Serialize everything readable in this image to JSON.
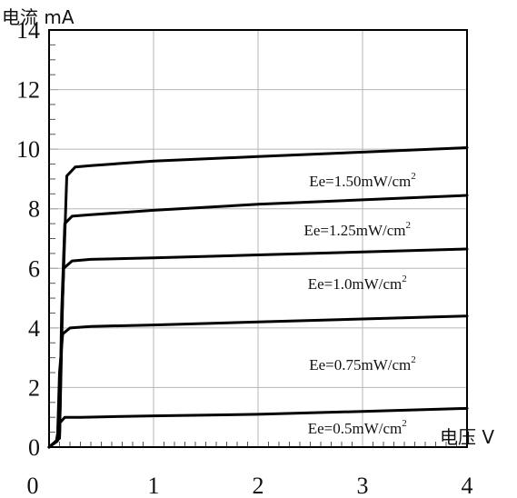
{
  "chart_data": {
    "type": "line",
    "ylabel": "电流 mA",
    "xlabel": "电压 V",
    "xlim": [
      0,
      4
    ],
    "ylim": [
      0,
      14
    ],
    "x_ticks": [
      "0",
      "1",
      "2",
      "3",
      "4"
    ],
    "y_ticks": [
      "0",
      "2",
      "4",
      "6",
      "8",
      "10",
      "12",
      "14"
    ],
    "grid": true,
    "series": [
      {
        "name": "Ee=1.50mW/cm2",
        "label_parts": [
          "Ee=1.50mW/cm",
          "2"
        ],
        "x": [
          0,
          0.1,
          0.13,
          0.17,
          0.25,
          0.4,
          1,
          2,
          3,
          4
        ],
        "y": [
          0,
          0.3,
          5.0,
          9.1,
          9.4,
          9.45,
          9.6,
          9.75,
          9.9,
          10.05
        ]
      },
      {
        "name": "Ee=1.25mW/cm2",
        "label_parts": [
          "Ee=1.25mW/cm",
          "2"
        ],
        "x": [
          0,
          0.1,
          0.12,
          0.15,
          0.22,
          0.4,
          1,
          2,
          3,
          4
        ],
        "y": [
          0,
          0.3,
          4.5,
          7.5,
          7.75,
          7.8,
          7.95,
          8.15,
          8.3,
          8.45
        ]
      },
      {
        "name": "Ee=1.0mW/cm2",
        "label_parts": [
          "Ee=1.0mW/cm",
          "2"
        ],
        "x": [
          0,
          0.1,
          0.12,
          0.14,
          0.22,
          0.4,
          1,
          2,
          3,
          4
        ],
        "y": [
          0,
          0.3,
          4.0,
          6.0,
          6.25,
          6.3,
          6.35,
          6.45,
          6.55,
          6.65
        ]
      },
      {
        "name": "Ee=0.75mW/cm2",
        "label_parts": [
          "Ee=0.75mW/cm",
          "2"
        ],
        "x": [
          0,
          0.08,
          0.1,
          0.13,
          0.2,
          0.4,
          1,
          2,
          3,
          4
        ],
        "y": [
          0,
          0.2,
          2.5,
          3.8,
          4.0,
          4.05,
          4.1,
          4.2,
          4.3,
          4.4
        ]
      },
      {
        "name": "Ee=0.5mW/cm2",
        "label_parts": [
          "Ee=0.5mW/cm",
          "2"
        ],
        "x": [
          0,
          0.07,
          0.1,
          0.15,
          0.3,
          1,
          2,
          3,
          4
        ],
        "y": [
          0,
          0.2,
          0.8,
          1.0,
          1.0,
          1.05,
          1.1,
          1.2,
          1.3
        ]
      }
    ]
  }
}
